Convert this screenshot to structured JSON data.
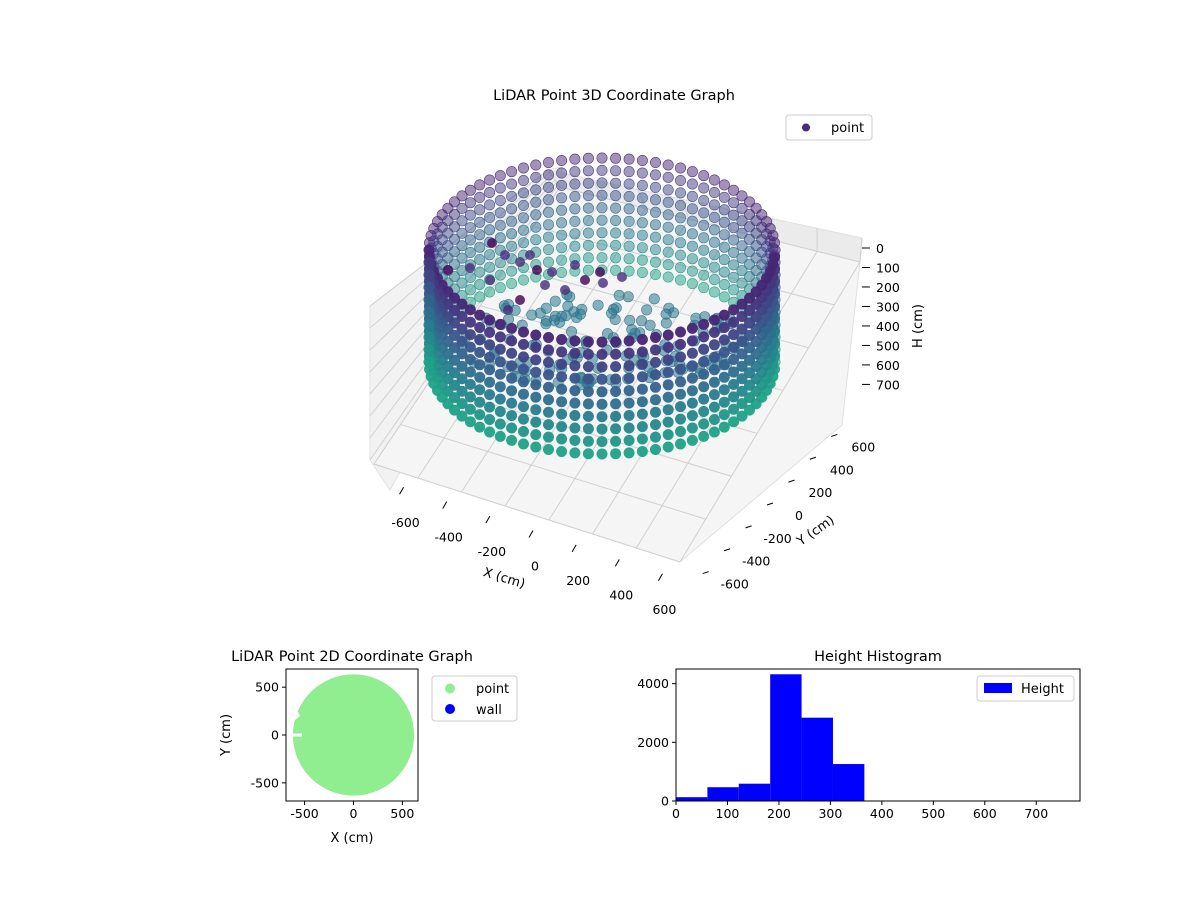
{
  "chart_data": [
    {
      "type": "scatter3d",
      "title": "LiDAR Point 3D Coordinate Graph",
      "xlabel": "X (cm)",
      "ylabel": "Y (cm)",
      "zlabel": "H (cm)",
      "xlim": [
        -700,
        700
      ],
      "ylim": [
        -700,
        700
      ],
      "zlim": [
        0,
        780
      ],
      "z_inverted": true,
      "xticks": [
        -600,
        -400,
        -200,
        0,
        200,
        400,
        600
      ],
      "yticks": [
        -600,
        -400,
        -200,
        0,
        200,
        400,
        600
      ],
      "zticks": [
        0,
        100,
        200,
        300,
        400,
        500,
        600,
        700
      ],
      "grid": true,
      "legend": {
        "position": "top-right",
        "entries": [
          "point"
        ]
      },
      "colormap": "viridis",
      "series": [
        {
          "name": "point",
          "shape": "ring",
          "radius": 600,
          "height_range": [
            180,
            370
          ],
          "interior_floor_height": 300,
          "gap_angle_deg": 150,
          "ceiling_points": [
            [
              -450,
              200,
              40
            ],
            [
              -300,
              350,
              60
            ],
            [
              -100,
              300,
              100
            ],
            [
              0,
              280,
              110
            ],
            [
              -200,
              150,
              80
            ],
            [
              50,
              350,
              90
            ],
            [
              -350,
              100,
              120
            ]
          ]
        }
      ]
    },
    {
      "type": "scatter",
      "title": "LiDAR Point 2D Coordinate Graph",
      "xlabel": "X (cm)",
      "ylabel": "Y (cm)",
      "xlim": [
        -690,
        660
      ],
      "ylim": [
        -690,
        690
      ],
      "xticks": [
        -500,
        0,
        500
      ],
      "yticks": [
        -500,
        0,
        500
      ],
      "legend": {
        "position": "outside-right",
        "entries": [
          "point",
          "wall"
        ]
      },
      "series": [
        {
          "name": "point",
          "color": "#90ee90",
          "shape": "filled-disk",
          "radius": 620
        },
        {
          "name": "wall",
          "color": "#0000ff",
          "points": []
        }
      ]
    },
    {
      "type": "bar",
      "title": "Height Histogram",
      "xlim": [
        0,
        785
      ],
      "ylim": [
        0,
        4500
      ],
      "xticks": [
        0,
        100,
        200,
        300,
        400,
        500,
        600,
        700
      ],
      "yticks": [
        0,
        2000,
        4000
      ],
      "legend": {
        "position": "top-right",
        "entries": [
          "Height"
        ]
      },
      "color": "#0000ff",
      "bin_edges": [
        0,
        61,
        122,
        183,
        244,
        305,
        366,
        427,
        488,
        549,
        610,
        671,
        732
      ],
      "values": [
        130,
        470,
        590,
        4320,
        2840,
        1260,
        0,
        0,
        0,
        0,
        0,
        0
      ]
    }
  ]
}
